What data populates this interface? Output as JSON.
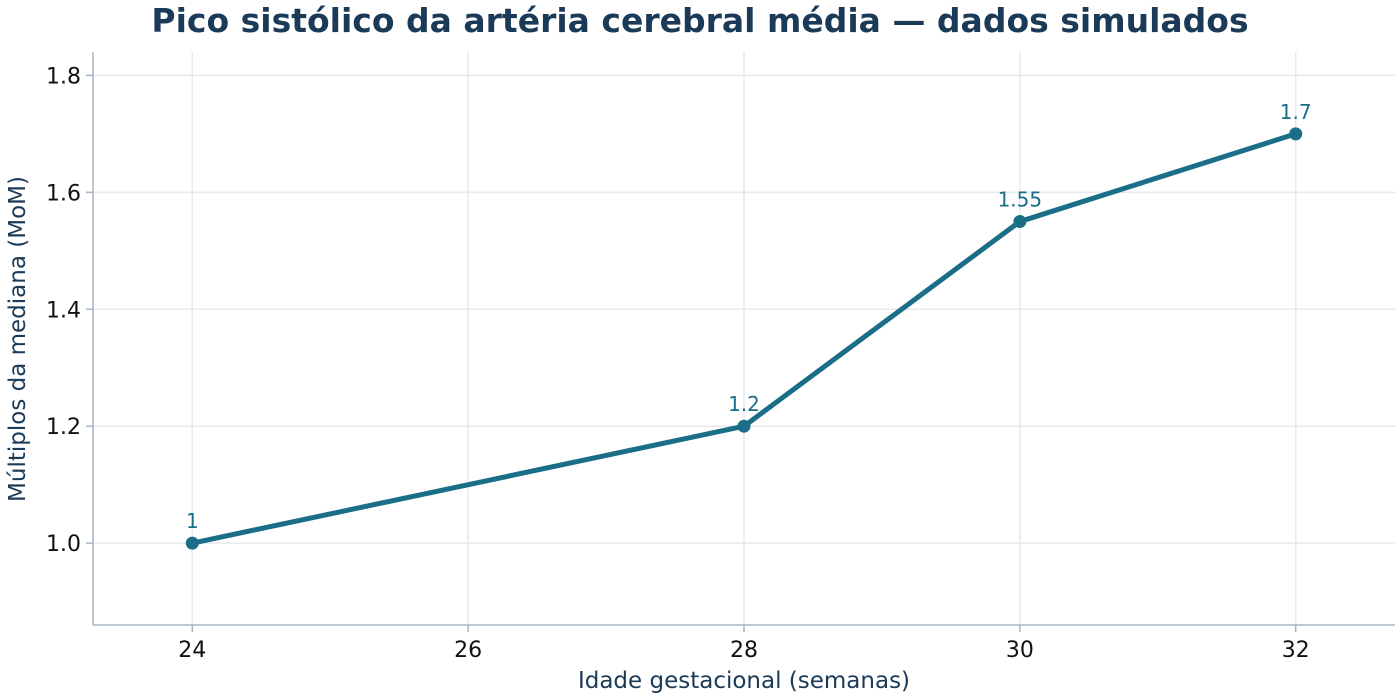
{
  "chart_data": {
    "type": "line",
    "title": "Pico sistólico da artéria cerebral média — dados simulados",
    "xlabel": "Idade gestacional (semanas)",
    "ylabel": "Múltiplos da mediana (MoM)",
    "x": [
      24,
      28,
      30,
      32
    ],
    "y": [
      1.0,
      1.2,
      1.55,
      1.7
    ],
    "data_labels": [
      "1",
      "1.2",
      "1.55",
      "1.7"
    ],
    "x_ticks": [
      24,
      26,
      28,
      30,
      32
    ],
    "x_tick_labels": [
      "24",
      "26",
      "28",
      "30",
      "32"
    ],
    "y_ticks": [
      1.0,
      1.2,
      1.4,
      1.6,
      1.8
    ],
    "y_tick_labels": [
      "1.0",
      "1.2",
      "1.4",
      "1.6",
      "1.8"
    ],
    "xlim": [
      23.28,
      32.72
    ],
    "ylim": [
      0.86,
      1.84
    ],
    "grid": true,
    "line_color": "#1a6e87",
    "marker_color": "#1a6e87",
    "label_color": "#1a6e87"
  }
}
